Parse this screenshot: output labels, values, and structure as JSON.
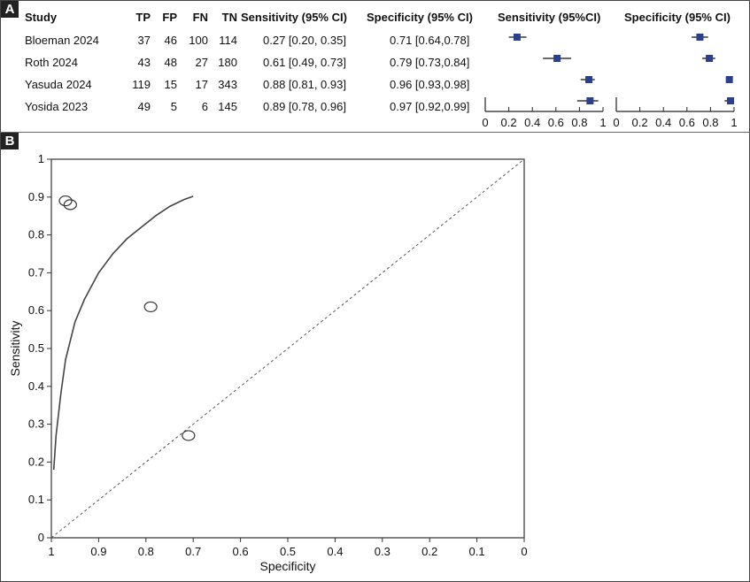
{
  "panel_a_label": "A",
  "panel_b_label": "B",
  "table": {
    "headers": {
      "study": "Study",
      "tp": "TP",
      "fp": "FP",
      "fn": "FN",
      "tn": "TN",
      "sens_ci": "Sensitivity (95% CI)",
      "spec_ci": "Specificity (95% CI)",
      "sens_plot": "Sensitivity (95%CI)",
      "spec_plot": "Specificity (95% CI)"
    },
    "rows": [
      {
        "study": "Bloeman 2024",
        "tp": "37",
        "fp": "46",
        "fn": "100",
        "tn": "114",
        "sens_ci": "0.27 [0.20, 0.35]",
        "spec_ci": "0.71 [0.64,0.78]"
      },
      {
        "study": "Roth 2024",
        "tp": "43",
        "fp": "48",
        "fn": "27",
        "tn": "180",
        "sens_ci": "0.61 [0.49, 0.73]",
        "spec_ci": "0.79 [0.73,0.84]"
      },
      {
        "study": "Yasuda 2024",
        "tp": "119",
        "fp": "15",
        "fn": "17",
        "tn": "343",
        "sens_ci": "0.88 [0.81, 0.93]",
        "spec_ci": "0.96 [0.93,0.98]"
      },
      {
        "study": "Yosida 2023",
        "tp": "49",
        "fp": "5",
        "fn": "6",
        "tn": "145",
        "sens_ci": "0.89 [0.78, 0.96]",
        "spec_ci": "0.97 [0.92,0.99]"
      }
    ]
  },
  "chart_data": [
    {
      "type": "scatter",
      "name_ref": "sensitivity-forest",
      "xlim": [
        0,
        1
      ],
      "ticks": [
        "0",
        "0.2",
        "0.4",
        "0.6",
        "0.8",
        "1"
      ],
      "points": [
        {
          "est": 0.27,
          "lo": 0.2,
          "hi": 0.35
        },
        {
          "est": 0.61,
          "lo": 0.49,
          "hi": 0.73
        },
        {
          "est": 0.88,
          "lo": 0.81,
          "hi": 0.93
        },
        {
          "est": 0.89,
          "lo": 0.78,
          "hi": 0.96
        }
      ],
      "color": "#2b3f8f"
    },
    {
      "type": "scatter",
      "name_ref": "specificity-forest",
      "xlim": [
        0,
        1
      ],
      "ticks": [
        "0",
        "0.2",
        "0.4",
        "0.6",
        "0.8",
        "1"
      ],
      "points": [
        {
          "est": 0.71,
          "lo": 0.64,
          "hi": 0.78
        },
        {
          "est": 0.79,
          "lo": 0.73,
          "hi": 0.84
        },
        {
          "est": 0.96,
          "lo": 0.93,
          "hi": 0.98
        },
        {
          "est": 0.97,
          "lo": 0.92,
          "hi": 0.99
        }
      ],
      "color": "#2b3f8f"
    },
    {
      "type": "scatter",
      "name_ref": "sroc",
      "xlabel": "Specificity",
      "ylabel": "Sensitivity",
      "xlim": [
        1,
        0
      ],
      "ylim": [
        0,
        1
      ],
      "xticks": [
        "1",
        "0.9",
        "0.8",
        "0.7",
        "0.6",
        "0.5",
        "0.4",
        "0.3",
        "0.2",
        "0.1",
        "0"
      ],
      "yticks": [
        "0",
        "0.1",
        "0.2",
        "0.3",
        "0.4",
        "0.5",
        "0.6",
        "0.7",
        "0.8",
        "0.9",
        "1"
      ],
      "points": [
        {
          "spec": 0.71,
          "sens": 0.27
        },
        {
          "spec": 0.79,
          "sens": 0.61
        },
        {
          "spec": 0.96,
          "sens": 0.88
        },
        {
          "spec": 0.97,
          "sens": 0.89
        }
      ],
      "curve": [
        {
          "spec": 0.995,
          "sens": 0.18
        },
        {
          "spec": 0.99,
          "sens": 0.27
        },
        {
          "spec": 0.98,
          "sens": 0.38
        },
        {
          "spec": 0.97,
          "sens": 0.47
        },
        {
          "spec": 0.95,
          "sens": 0.57
        },
        {
          "spec": 0.93,
          "sens": 0.63
        },
        {
          "spec": 0.9,
          "sens": 0.7
        },
        {
          "spec": 0.87,
          "sens": 0.75
        },
        {
          "spec": 0.84,
          "sens": 0.79
        },
        {
          "spec": 0.81,
          "sens": 0.82
        },
        {
          "spec": 0.78,
          "sens": 0.85
        },
        {
          "spec": 0.75,
          "sens": 0.875
        },
        {
          "spec": 0.72,
          "sens": 0.893
        },
        {
          "spec": 0.7,
          "sens": 0.902
        }
      ],
      "diagonal": true
    }
  ]
}
